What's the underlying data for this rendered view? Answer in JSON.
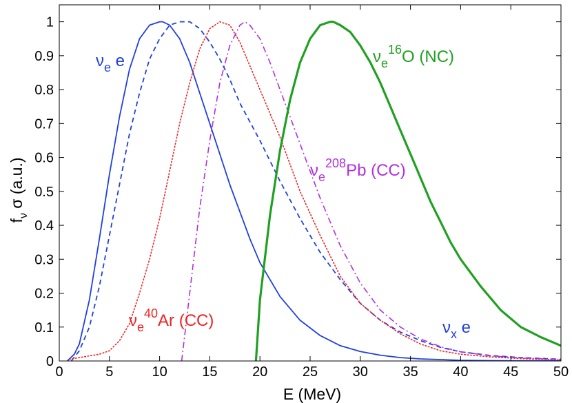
{
  "chart_data": {
    "type": "line",
    "xlabel": "E (MeV)",
    "ylabel": {
      "base": "f",
      "sub": "ν",
      "rest": " σ (a.u.)"
    },
    "xlim": [
      0,
      50
    ],
    "ylim": [
      0,
      1.05
    ],
    "x_ticks": [
      0,
      5,
      10,
      15,
      20,
      25,
      30,
      35,
      40,
      45,
      50
    ],
    "x_tick_labels": [
      "0",
      "5",
      "10",
      "15",
      "20",
      "25",
      "30",
      "35",
      "40",
      "45",
      "50"
    ],
    "y_ticks": [
      0,
      0.1,
      0.2,
      0.3,
      0.4,
      0.5,
      0.6,
      0.7,
      0.8,
      0.9,
      1
    ],
    "y_tick_labels": [
      "0",
      "0.1",
      "0.2",
      "0.3",
      "0.4",
      "0.5",
      "0.6",
      "0.7",
      "0.8",
      "0.9",
      "1"
    ],
    "grid": false,
    "series": [
      {
        "id": "nue-e",
        "color": "#1f3fe0",
        "style": "solid",
        "width": 1.8,
        "x": [
          0.8,
          1.5,
          2,
          3,
          4,
          5,
          6,
          7,
          8,
          9,
          10,
          10.3,
          11,
          12,
          13,
          14,
          15,
          16,
          17,
          18,
          19,
          20,
          22,
          24,
          26,
          28,
          30,
          32,
          34,
          36,
          38,
          40,
          43,
          46,
          50
        ],
        "y": [
          0.0,
          0.02,
          0.05,
          0.18,
          0.36,
          0.55,
          0.72,
          0.86,
          0.95,
          0.99,
          1.0,
          1.0,
          0.99,
          0.95,
          0.88,
          0.79,
          0.7,
          0.61,
          0.52,
          0.44,
          0.36,
          0.29,
          0.19,
          0.12,
          0.075,
          0.045,
          0.028,
          0.017,
          0.01,
          0.006,
          0.004,
          0.002,
          0.001,
          0.0005,
          0.0002
        ]
      },
      {
        "id": "nux-e",
        "color": "#1f3fe0",
        "style": "dashed",
        "width": 1.8,
        "x": [
          1.2,
          2,
          3,
          4,
          5,
          6,
          7,
          8,
          9,
          10,
          11,
          12,
          13,
          14,
          15,
          16,
          17,
          18,
          20,
          22,
          24,
          26,
          28,
          30,
          32,
          34,
          36,
          38,
          40,
          43,
          46,
          50
        ],
        "y": [
          0.0,
          0.03,
          0.1,
          0.22,
          0.37,
          0.52,
          0.67,
          0.79,
          0.89,
          0.95,
          0.99,
          1.0,
          1.0,
          0.98,
          0.94,
          0.89,
          0.83,
          0.76,
          0.65,
          0.53,
          0.42,
          0.32,
          0.24,
          0.17,
          0.12,
          0.085,
          0.06,
          0.04,
          0.027,
          0.016,
          0.01,
          0.005
        ]
      },
      {
        "id": "nue-ar40",
        "color": "#ee2222",
        "style": "dotted",
        "width": 1.6,
        "x": [
          1,
          2,
          3,
          4,
          5,
          6,
          7,
          8,
          9,
          10,
          11,
          12,
          13,
          14,
          15,
          16,
          17,
          18,
          19,
          20,
          22,
          24,
          26,
          28,
          30,
          32,
          34,
          36,
          38,
          40,
          43,
          46,
          50
        ],
        "y": [
          0.005,
          0.01,
          0.015,
          0.02,
          0.03,
          0.06,
          0.11,
          0.2,
          0.3,
          0.42,
          0.56,
          0.7,
          0.82,
          0.92,
          0.98,
          1.0,
          0.99,
          0.94,
          0.87,
          0.8,
          0.66,
          0.5,
          0.37,
          0.25,
          0.17,
          0.12,
          0.08,
          0.05,
          0.03,
          0.02,
          0.012,
          0.007,
          0.003
        ]
      },
      {
        "id": "nue-pb208",
        "color": "#b030e0",
        "style": "dashdot",
        "width": 1.6,
        "x": [
          12.2,
          13,
          14,
          15,
          16,
          17,
          18,
          18.5,
          19,
          20,
          21,
          22,
          23,
          24,
          25,
          26,
          27,
          28,
          30,
          32,
          34,
          36,
          38,
          40,
          43,
          46,
          50
        ],
        "y": [
          0.0,
          0.2,
          0.45,
          0.65,
          0.82,
          0.93,
          0.99,
          1.0,
          0.99,
          0.95,
          0.88,
          0.8,
          0.72,
          0.64,
          0.56,
          0.48,
          0.41,
          0.34,
          0.23,
          0.15,
          0.1,
          0.065,
          0.042,
          0.027,
          0.015,
          0.009,
          0.004
        ]
      },
      {
        "id": "nue-o16",
        "color": "#20a020",
        "style": "solid",
        "width": 3.2,
        "x": [
          19.6,
          20,
          21,
          22,
          23,
          24,
          25,
          26,
          27,
          27.3,
          28,
          29,
          30,
          31,
          32,
          33,
          34,
          35,
          36,
          37,
          38,
          39,
          40,
          42,
          44,
          46,
          48,
          50
        ],
        "y": [
          0.0,
          0.18,
          0.43,
          0.62,
          0.77,
          0.88,
          0.95,
          0.99,
          1.0,
          1.0,
          0.99,
          0.97,
          0.93,
          0.88,
          0.82,
          0.75,
          0.68,
          0.61,
          0.54,
          0.47,
          0.41,
          0.35,
          0.3,
          0.22,
          0.15,
          0.1,
          0.07,
          0.045
        ]
      }
    ],
    "annotations": [
      {
        "id": "nue-e",
        "nu": "ν",
        "sub": "e",
        "sup": "",
        "text": " e",
        "color": "#1f3fe0"
      },
      {
        "id": "nue-o16",
        "nu": "ν",
        "sub": "e",
        "sup": "16",
        "text": "O (NC)",
        "color": "#20a020"
      },
      {
        "id": "nue-pb208",
        "nu": "ν",
        "sub": "e",
        "sup": "208",
        "text": "Pb (CC)",
        "color": "#b030e0"
      },
      {
        "id": "nue-ar40",
        "nu": "ν",
        "sub": "e",
        "sup": "40",
        "text": "Ar (CC)",
        "color": "#ee2222"
      },
      {
        "id": "nux-e",
        "nu": "ν",
        "sub": "x",
        "sup": "",
        "text": " e",
        "color": "#1f3fe0"
      }
    ]
  }
}
